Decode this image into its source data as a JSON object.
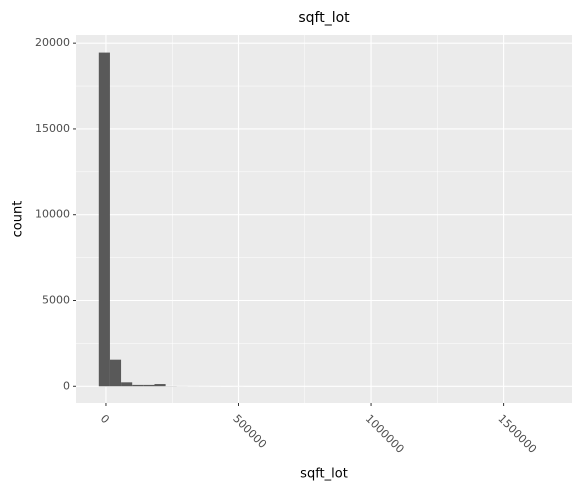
{
  "chart_data": {
    "type": "histogram",
    "title": "sqft_lot",
    "x_label": "sqft_lot",
    "y_label": "count",
    "bins": [
      -27000,
      15000,
      57000,
      99000,
      141000,
      183000,
      225000,
      267000,
      309000,
      351000,
      393000,
      435000,
      477000,
      519000,
      561000,
      603000,
      645000,
      687000,
      729000,
      771000,
      813000,
      855000,
      897000,
      939000,
      981000,
      1023000,
      1065000,
      1107000,
      1149000,
      1191000,
      1233000
    ],
    "values": [
      19450,
      1550,
      230,
      80,
      80,
      130,
      10,
      5,
      3,
      2,
      1,
      0,
      1,
      0,
      0,
      0,
      0,
      0,
      0,
      0,
      0,
      0,
      0,
      0,
      0,
      0,
      0,
      0,
      0,
      0
    ],
    "color": "#595959",
    "xlim": [
      -113000,
      1758000
    ],
    "xticks": [
      0,
      500000,
      1000000,
      1500000
    ],
    "xminor_breaks": [
      250000,
      750000,
      1250000
    ],
    "ylim": [
      -975,
      20475
    ],
    "yticks": [
      0,
      5000,
      10000,
      15000,
      20000
    ],
    "yminor_breaks": [
      2500,
      7500,
      12500,
      17500
    ],
    "grid": true
  }
}
